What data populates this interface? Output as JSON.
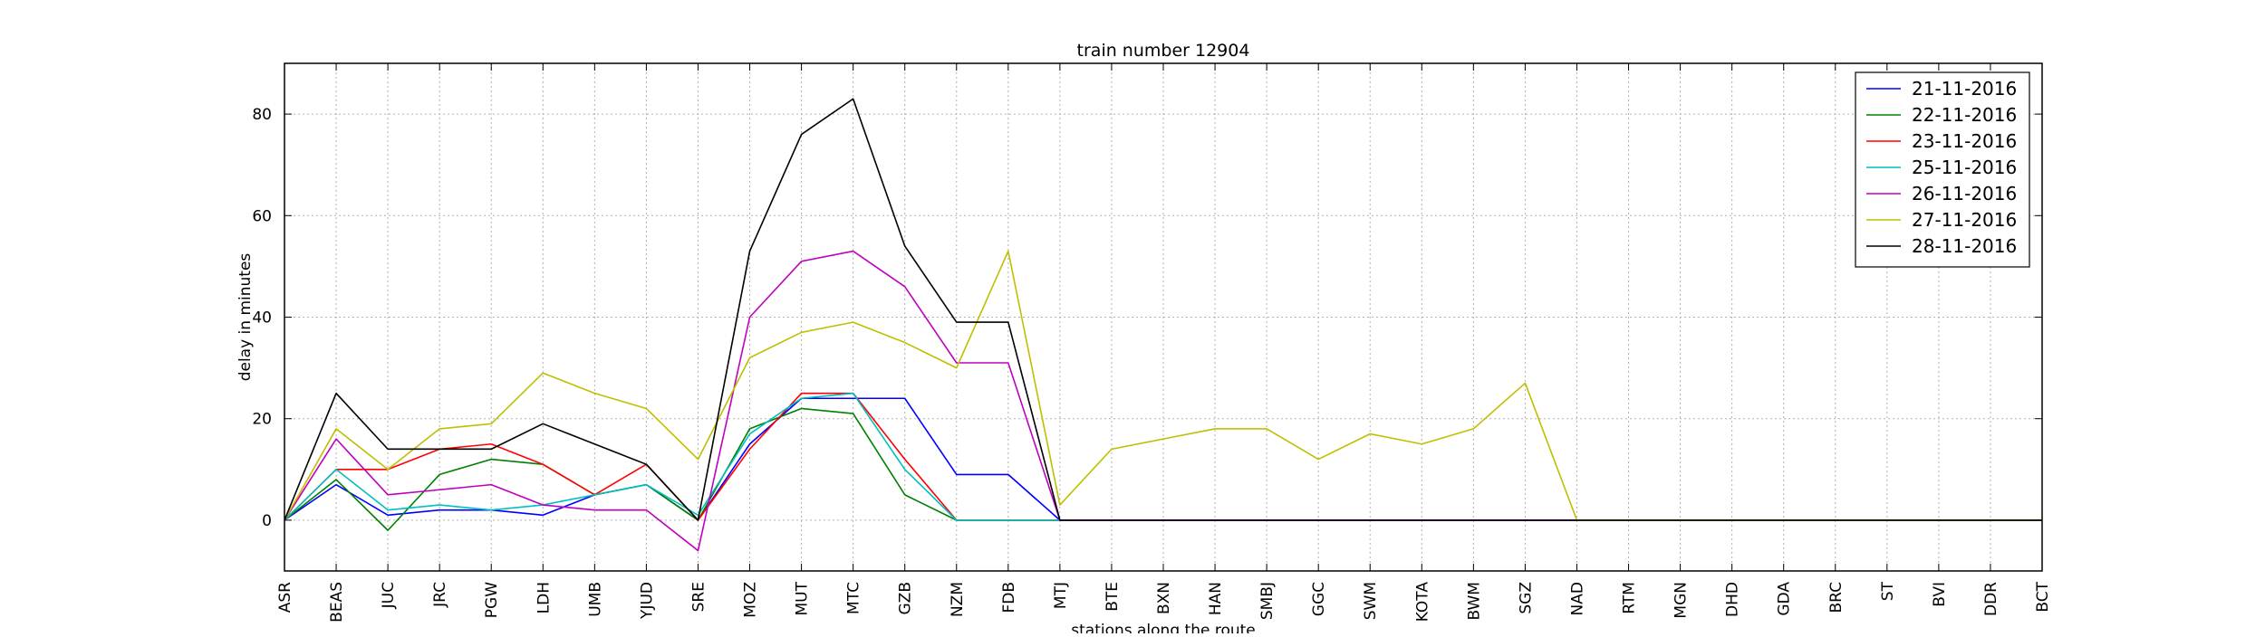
{
  "chart_data": {
    "type": "line",
    "title": "train number 12904",
    "xlabel": "stations along the route",
    "ylabel": "delay in minutes",
    "ylim": [
      -10,
      90
    ],
    "yticks": [
      0,
      20,
      40,
      60,
      80
    ],
    "grid": true,
    "legend_position": "top-right",
    "categories": [
      "ASR",
      "BEAS",
      "JUC",
      "JRC",
      "PGW",
      "LDH",
      "UMB",
      "YJUD",
      "SRE",
      "MOZ",
      "MUT",
      "MTC",
      "GZB",
      "NZM",
      "FDB",
      "MTJ",
      "BTE",
      "BXN",
      "HAN",
      "SMBJ",
      "GGC",
      "SWM",
      "KOTA",
      "BWM",
      "SGZ",
      "NAD",
      "RTM",
      "MGN",
      "DHD",
      "GDA",
      "BRC",
      "ST",
      "BVI",
      "DDR",
      "BCT"
    ],
    "series": [
      {
        "name": "21-11-2016",
        "color": "#0000ff",
        "values": [
          0,
          7,
          1,
          2,
          2,
          1,
          5,
          7,
          0,
          15,
          24,
          24,
          24,
          9,
          9,
          0,
          0,
          0,
          0,
          0,
          0,
          0,
          0,
          0,
          0,
          0,
          0,
          0,
          0,
          0,
          0,
          0,
          0,
          0,
          0
        ]
      },
      {
        "name": "22-11-2016",
        "color": "#008000",
        "values": [
          0,
          8,
          -2,
          9,
          12,
          11,
          5,
          7,
          0,
          18,
          22,
          21,
          5,
          0,
          0,
          0,
          0,
          0,
          0,
          0,
          0,
          0,
          0,
          0,
          0,
          0,
          0,
          0,
          0,
          0,
          0,
          0,
          0,
          0,
          0
        ]
      },
      {
        "name": "23-11-2016",
        "color": "#ff0000",
        "values": [
          0,
          10,
          10,
          14,
          15,
          11,
          5,
          11,
          0,
          14,
          25,
          25,
          12,
          0,
          0,
          0,
          0,
          0,
          0,
          0,
          0,
          0,
          0,
          0,
          0,
          0,
          0,
          0,
          0,
          0,
          0,
          0,
          0,
          0,
          0
        ]
      },
      {
        "name": "25-11-2016",
        "color": "#00bfbf",
        "values": [
          0,
          10,
          2,
          3,
          2,
          3,
          5,
          7,
          1,
          17,
          24,
          25,
          10,
          0,
          0,
          0,
          0,
          0,
          0,
          0,
          0,
          0,
          0,
          0,
          0,
          0,
          0,
          0,
          0,
          0,
          0,
          0,
          0,
          0,
          0
        ]
      },
      {
        "name": "26-11-2016",
        "color": "#bf00bf",
        "values": [
          0,
          16,
          5,
          6,
          7,
          3,
          2,
          2,
          -6,
          40,
          51,
          53,
          46,
          31,
          31,
          0,
          0,
          0,
          0,
          0,
          0,
          0,
          0,
          0,
          0,
          0,
          0,
          0,
          0,
          0,
          0,
          0,
          0,
          0,
          0
        ]
      },
      {
        "name": "27-11-2016",
        "color": "#bfbf00",
        "values": [
          0,
          18,
          10,
          18,
          19,
          29,
          25,
          22,
          12,
          32,
          37,
          39,
          35,
          30,
          53,
          3,
          14,
          16,
          18,
          18,
          12,
          17,
          15,
          18,
          27,
          0,
          0,
          0,
          0,
          0,
          0,
          0,
          0,
          0,
          0
        ]
      },
      {
        "name": "28-11-2016",
        "color": "#000000",
        "values": [
          0,
          25,
          14,
          14,
          14,
          19,
          15,
          11,
          0,
          53,
          76,
          83,
          54,
          39,
          39,
          0,
          0,
          0,
          0,
          0,
          0,
          0,
          0,
          0,
          0,
          0,
          0,
          0,
          0,
          0,
          0,
          0,
          0,
          0,
          0
        ]
      }
    ]
  }
}
